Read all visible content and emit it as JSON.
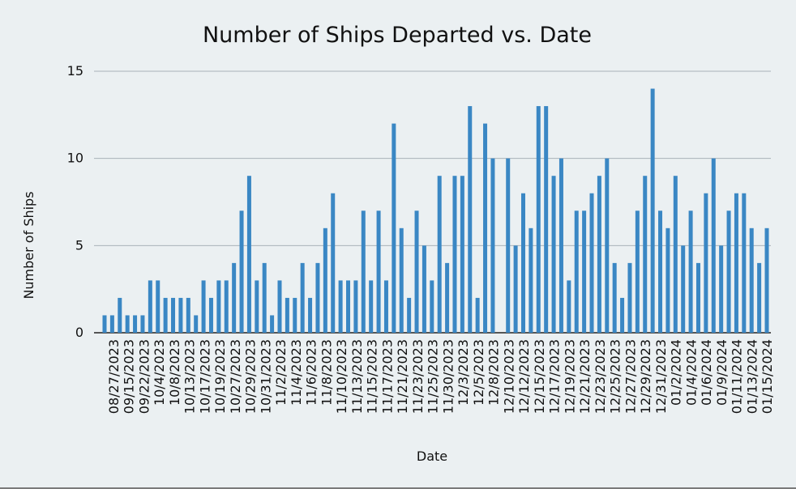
{
  "chart_data": {
    "type": "bar",
    "title": "Number of Ships Departed vs. Date",
    "xlabel": "Date",
    "ylabel": "Number of Ships",
    "ylim": [
      0,
      15
    ],
    "yticks": [
      0,
      5,
      10,
      15
    ],
    "grid": true,
    "legend": "none",
    "bar_color": "#3a87c4",
    "values": [
      1,
      1,
      2,
      1,
      1,
      1,
      3,
      3,
      2,
      2,
      2,
      2,
      1,
      3,
      2,
      3,
      3,
      4,
      7,
      9,
      3,
      4,
      1,
      3,
      2,
      2,
      4,
      2,
      4,
      6,
      8,
      3,
      3,
      3,
      7,
      3,
      7,
      3,
      12,
      6,
      2,
      7,
      5,
      3,
      9,
      4,
      9,
      9,
      13,
      2,
      12,
      10,
      0,
      10,
      5,
      8,
      6,
      13,
      13,
      9,
      10,
      3,
      7,
      7,
      8,
      9,
      10,
      4,
      2,
      4,
      7,
      9,
      14,
      7,
      6,
      9,
      5,
      7,
      4,
      8,
      10,
      5,
      7,
      8,
      8,
      6,
      4,
      6
    ],
    "tick_labels": [
      "08/27/2023",
      "09/15/2023",
      "09/22/2023",
      "10/4/2023",
      "10/8/2023",
      "10/13/2023",
      "10/17/2023",
      "10/19/2023",
      "10/27/2023",
      "10/29/2023",
      "10/31/2023",
      "11/2/2023",
      "11/4/2023",
      "11/6/2023",
      "11/8/2023",
      "11/10/2023",
      "11/13/2023",
      "11/15/2023",
      "11/17/2023",
      "11/21/2023",
      "11/23/2023",
      "11/25/2023",
      "11/30/2023",
      "12/3/2023",
      "12/5/2023",
      "12/8/2023",
      "12/10/2023",
      "12/12/2023",
      "12/15/2023",
      "12/17/2023",
      "12/19/2023",
      "12/21/2023",
      "12/23/2023",
      "12/25/2023",
      "12/27/2023",
      "12/29/2023",
      "12/31/2023",
      "01/2/2024",
      "01/4/2024",
      "01/6/2024",
      "01/9/2024",
      "01/11/2024",
      "01/13/2024",
      "01/15/2024"
    ]
  },
  "colors": {
    "background": "#ebf0f2",
    "grid": "#a9b2b8",
    "text": "#1a1a1a"
  }
}
